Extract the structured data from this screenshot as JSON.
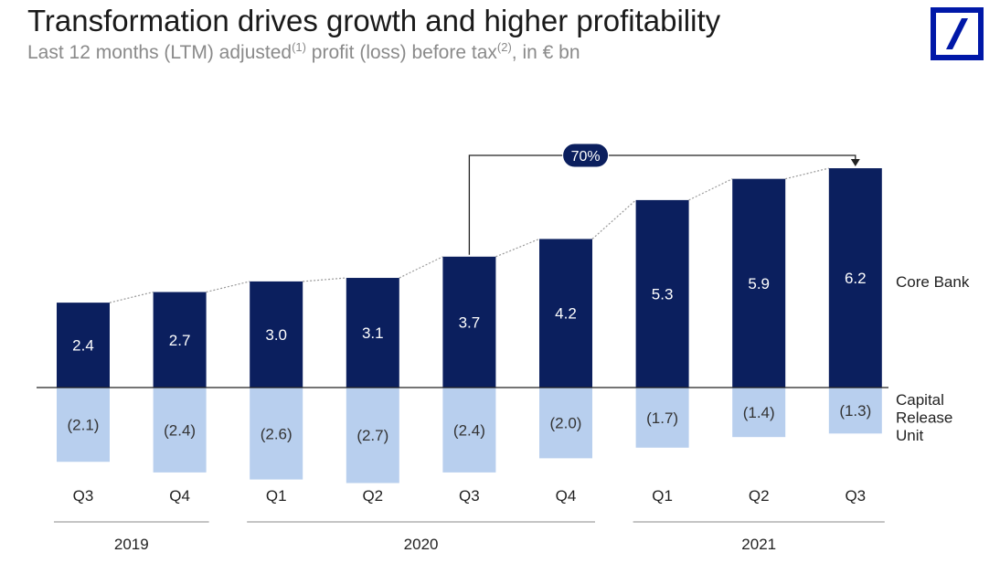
{
  "header": {
    "title": "Transformation drives growth and higher profitability",
    "subtitle_pre": "Last 12 months (LTM) adjusted",
    "sup1": "(1)",
    "subtitle_mid": " profit (loss) before tax",
    "sup2": "(2)",
    "subtitle_post": ", in € bn"
  },
  "logo": {
    "icon": "deutsche-bank-logo",
    "color": "#0018a8"
  },
  "chart_data": {
    "type": "bar",
    "categories": [
      "Q3",
      "Q4",
      "Q1",
      "Q2",
      "Q3",
      "Q4",
      "Q1",
      "Q2",
      "Q3"
    ],
    "years": [
      {
        "label": "2019",
        "from": 0,
        "to": 1
      },
      {
        "label": "2020",
        "from": 2,
        "to": 5
      },
      {
        "label": "2021",
        "from": 6,
        "to": 8
      }
    ],
    "series": [
      {
        "name": "Core Bank",
        "values": [
          2.4,
          2.7,
          3.0,
          3.1,
          3.7,
          4.2,
          5.3,
          5.9,
          6.2
        ],
        "labels": [
          "2.4",
          "2.7",
          "3.0",
          "3.1",
          "3.7",
          "4.2",
          "5.3",
          "5.9",
          "6.2"
        ],
        "color": "#0b1f5e"
      },
      {
        "name": "Capital Release Unit",
        "values": [
          -2.1,
          -2.4,
          -2.6,
          -2.7,
          -2.4,
          -2.0,
          -1.7,
          -1.4,
          -1.3
        ],
        "labels": [
          "(2.1)",
          "(2.4)",
          "(2.6)",
          "(2.7)",
          "(2.4)",
          "(2.0)",
          "(1.7)",
          "(1.4)",
          "(1.3)"
        ],
        "color": "#b8cfee"
      }
    ],
    "legend_lines": [
      [
        "Core Bank"
      ],
      [
        "Capital",
        "Release",
        "Unit"
      ]
    ],
    "annotation": {
      "label": "70%",
      "from_index": 4,
      "to_index": 8
    }
  }
}
